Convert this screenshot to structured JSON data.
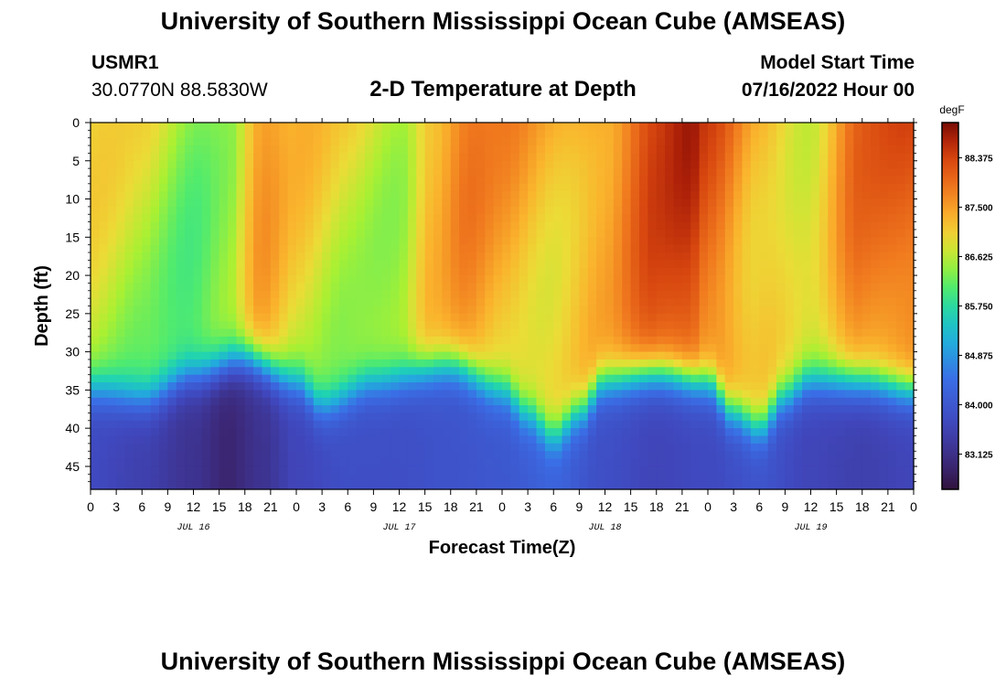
{
  "header": {
    "title": "University of Southern Mississippi Ocean Cube (AMSEAS)",
    "station": "USMR1",
    "coords": "30.0770N  88.5830W",
    "subtitle": "2-D Temperature at Depth",
    "model_start_label": "Model Start Time",
    "model_start_value": "07/16/2022 Hour 00"
  },
  "footer": {
    "title": "University of Southern Mississippi Ocean Cube (AMSEAS)"
  },
  "chart_data": {
    "type": "heatmap",
    "title": "2-D Temperature at Depth",
    "xlabel": "Forecast Time(Z)",
    "ylabel": "Depth (ft)",
    "x_hours_range": [
      0,
      96
    ],
    "x_tick_labels": [
      "0",
      "3",
      "6",
      "9",
      "12",
      "15",
      "18",
      "21",
      "0",
      "3",
      "6",
      "9",
      "12",
      "15",
      "18",
      "21",
      "0",
      "3",
      "6",
      "9",
      "12",
      "15",
      "18",
      "21",
      "0",
      "3",
      "6",
      "9",
      "12",
      "15",
      "18",
      "21",
      "0"
    ],
    "date_labels": [
      {
        "label": "JUL 16",
        "hour": 12
      },
      {
        "label": "JUL 17",
        "hour": 36
      },
      {
        "label": "JUL 18",
        "hour": 60
      },
      {
        "label": "JUL 19",
        "hour": 84
      }
    ],
    "y_ticks": [
      0,
      5,
      10,
      15,
      20,
      25,
      30,
      35,
      40,
      45
    ],
    "ylim": [
      0,
      48
    ],
    "colorbar": {
      "unit": "degF",
      "min": 82.5,
      "max": 89.0,
      "tick_labels": [
        "88.375",
        "87.500",
        "86.625",
        "85.750",
        "84.875",
        "84.000",
        "83.125"
      ],
      "tick_values": [
        88.375,
        87.5,
        86.625,
        85.75,
        84.875,
        84.0,
        83.125
      ]
    },
    "thermocline_depth_ft_by_hour": [
      [
        0,
        35
      ],
      [
        6,
        36
      ],
      [
        12,
        33
      ],
      [
        18,
        31
      ],
      [
        24,
        34
      ],
      [
        27,
        37
      ],
      [
        33,
        34
      ],
      [
        42,
        32
      ],
      [
        48,
        35
      ],
      [
        51,
        38
      ],
      [
        54,
        41
      ],
      [
        57,
        38
      ],
      [
        60,
        34
      ],
      [
        66,
        33
      ],
      [
        72,
        34
      ],
      [
        75,
        38
      ],
      [
        78,
        40
      ],
      [
        81,
        36
      ],
      [
        84,
        34
      ],
      [
        90,
        34
      ],
      [
        96,
        35
      ]
    ],
    "surface_temp_degF_by_hour": [
      [
        0,
        87.0
      ],
      [
        6,
        86.8
      ],
      [
        12,
        86.4
      ],
      [
        16,
        86.6
      ],
      [
        20,
        87.6
      ],
      [
        24,
        87.2
      ],
      [
        30,
        86.9
      ],
      [
        36,
        86.7
      ],
      [
        40,
        87.4
      ],
      [
        44,
        87.8
      ],
      [
        48,
        87.6
      ],
      [
        54,
        87.3
      ],
      [
        60,
        87.6
      ],
      [
        66,
        88.4
      ],
      [
        70,
        88.6
      ],
      [
        72,
        88.2
      ],
      [
        78,
        87.4
      ],
      [
        84,
        86.9
      ],
      [
        90,
        88.0
      ],
      [
        96,
        88.2
      ]
    ],
    "deep_temp_degF_by_hour": [
      [
        0,
        83.7
      ],
      [
        6,
        83.5
      ],
      [
        12,
        83.2
      ],
      [
        16,
        82.9
      ],
      [
        20,
        83.2
      ],
      [
        24,
        83.6
      ],
      [
        30,
        83.8
      ],
      [
        36,
        83.8
      ],
      [
        42,
        83.9
      ],
      [
        48,
        84.0
      ],
      [
        54,
        84.2
      ],
      [
        60,
        83.8
      ],
      [
        66,
        83.6
      ],
      [
        72,
        83.7
      ],
      [
        78,
        83.9
      ],
      [
        84,
        83.6
      ],
      [
        90,
        83.5
      ],
      [
        96,
        83.6
      ]
    ]
  }
}
